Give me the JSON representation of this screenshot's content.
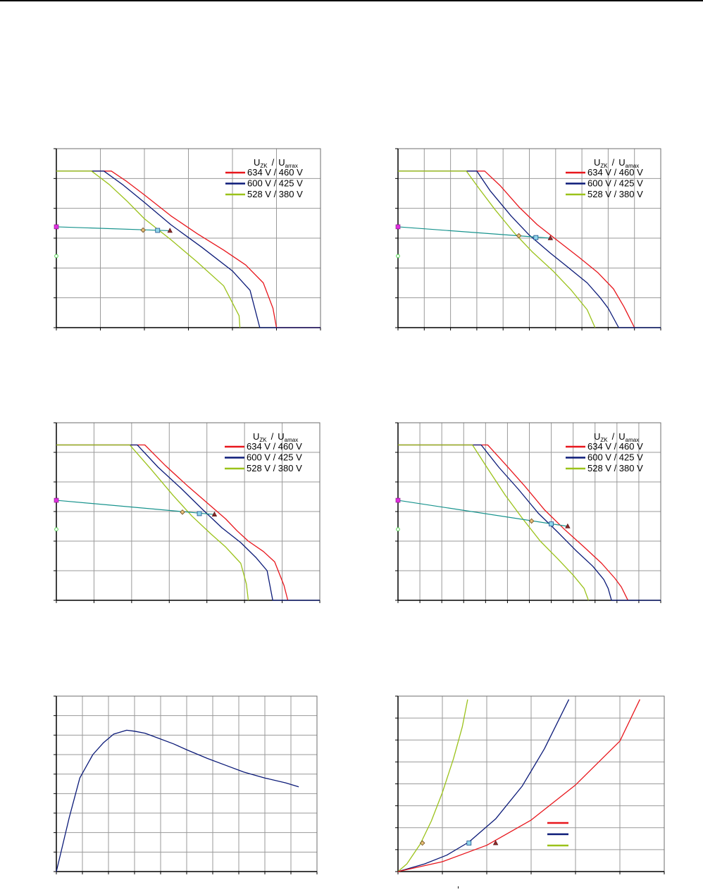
{
  "colors": {
    "red": "#e8161c",
    "navy": "#0b1a78",
    "green": "#9bc21a",
    "teal": "#17938d",
    "marker_square_fill": "#8fd6ea",
    "marker_square_edge": "#1b4d8a",
    "marker_triangle": "#8b2a2a",
    "marker_diamond_fill": "#e8c07a",
    "marker_diamond_edge": "#6b4a1a",
    "axis_point_magenta": "#e030e0",
    "axis_point_green": "#4fd14f"
  },
  "legend": {
    "head_u1": "U",
    "head_sub1": "ZK",
    "head_sep": "/",
    "head_u2": "U",
    "head_sub2": "amax",
    "head_sub2_alt": "arrax",
    "entries": [
      "634 V / 460 V",
      "600 V / 425 V",
      "528 V / 380 V"
    ]
  },
  "chart_data": [
    {
      "type": "line",
      "panel": "top-left",
      "xlim": [
        0,
        6
      ],
      "ylim": [
        0,
        6
      ],
      "grid": true,
      "legend": "top-right",
      "series": [
        {
          "name": "634 V / 460 V",
          "color": "red",
          "x": [
            0,
            1.25,
            1.6,
            2.0,
            2.6,
            3.2,
            3.8,
            4.3,
            4.7,
            4.92,
            5.0,
            6.0
          ],
          "y": [
            5.25,
            5.25,
            4.9,
            4.45,
            3.75,
            3.15,
            2.6,
            2.1,
            1.5,
            0.65,
            0,
            0
          ]
        },
        {
          "name": "600 V / 425 V",
          "color": "navy",
          "x": [
            0,
            1.08,
            1.5,
            2.0,
            2.6,
            3.3,
            4.0,
            4.4,
            4.62,
            6.0
          ],
          "y": [
            5.25,
            5.25,
            4.8,
            4.2,
            3.45,
            2.7,
            1.9,
            1.25,
            0,
            0
          ]
        },
        {
          "name": "528 V / 380 V",
          "color": "green",
          "x": [
            0,
            0.8,
            1.2,
            1.6,
            2.0,
            2.6,
            3.2,
            3.8,
            4.15,
            4.17
          ],
          "y": [
            5.25,
            5.25,
            4.8,
            4.25,
            3.65,
            2.95,
            2.2,
            1.4,
            0.4,
            0
          ]
        }
      ],
      "operating_line": {
        "x": [
          0,
          2.58
        ],
        "y": [
          3.38,
          3.25
        ]
      },
      "markers": {
        "diamond": [
          1.97,
          3.27
        ],
        "square": [
          2.3,
          3.26
        ],
        "triangle": [
          2.58,
          3.25
        ]
      },
      "axis_points": {
        "magenta": 3.38,
        "green": 2.4
      }
    },
    {
      "type": "line",
      "panel": "top-right",
      "xlim": [
        0,
        10
      ],
      "ylim": [
        0,
        6
      ],
      "grid": true,
      "legend": "top-right",
      "series": [
        {
          "name": "634 V / 460 V",
          "color": "red",
          "x": [
            0,
            3.3,
            3.9,
            4.6,
            5.3,
            6.1,
            6.9,
            7.6,
            8.2,
            8.6,
            9.0
          ],
          "y": [
            5.25,
            5.25,
            4.75,
            4.05,
            3.45,
            2.9,
            2.35,
            1.85,
            1.3,
            0.7,
            0
          ]
        },
        {
          "name": "600 V / 425 V",
          "color": "navy",
          "x": [
            0,
            3.0,
            3.5,
            4.3,
            5.0,
            5.8,
            6.5,
            7.2,
            7.7,
            8.0,
            8.4,
            10.0
          ],
          "y": [
            5.25,
            5.25,
            4.6,
            3.75,
            3.1,
            2.5,
            2.0,
            1.5,
            1.0,
            0.65,
            0,
            0
          ]
        },
        {
          "name": "528 V / 380 V",
          "color": "green",
          "x": [
            0,
            2.6,
            3.1,
            3.7,
            4.4,
            5.1,
            5.9,
            6.6,
            7.2,
            7.5
          ],
          "y": [
            5.25,
            5.25,
            4.65,
            3.95,
            3.2,
            2.55,
            1.9,
            1.25,
            0.6,
            0
          ]
        }
      ],
      "operating_line": {
        "x": [
          0,
          5.8
        ],
        "y": [
          3.38,
          3.0
        ]
      },
      "markers": {
        "diamond": [
          4.6,
          3.08
        ],
        "square": [
          5.25,
          3.02
        ],
        "triangle": [
          5.8,
          3.0
        ]
      },
      "axis_points": {
        "magenta": 3.38,
        "green": 2.4
      }
    },
    {
      "type": "line",
      "panel": "middle-left",
      "xlim": [
        0,
        7
      ],
      "ylim": [
        0,
        6
      ],
      "grid": true,
      "legend": "top-right",
      "series": [
        {
          "name": "634 V / 460 V",
          "color": "red",
          "x": [
            0,
            2.35,
            2.9,
            3.5,
            4.0,
            4.5,
            4.8,
            5.1,
            5.5,
            5.8,
            6.05,
            6.15
          ],
          "y": [
            5.25,
            5.25,
            4.55,
            3.85,
            3.3,
            2.75,
            2.35,
            2.0,
            1.65,
            1.3,
            0.5,
            0
          ]
        },
        {
          "name": "600 V / 425 V",
          "color": "navy",
          "x": [
            0,
            2.15,
            2.7,
            3.3,
            3.9,
            4.4,
            4.9,
            5.3,
            5.6,
            5.75,
            7.0
          ],
          "y": [
            5.25,
            5.25,
            4.5,
            3.8,
            3.05,
            2.45,
            1.95,
            1.45,
            1.0,
            0,
            0
          ]
        },
        {
          "name": "528 V / 380 V",
          "color": "green",
          "x": [
            0,
            1.95,
            2.5,
            3.1,
            3.6,
            4.1,
            4.5,
            4.9,
            5.05,
            5.1
          ],
          "y": [
            5.25,
            5.25,
            4.45,
            3.55,
            2.85,
            2.25,
            1.8,
            1.25,
            0.55,
            0
          ]
        }
      ],
      "operating_line": {
        "x": [
          0,
          4.2
        ],
        "y": [
          3.38,
          2.9
        ]
      },
      "markers": {
        "diamond": [
          3.35,
          2.98
        ],
        "square": [
          3.8,
          2.93
        ],
        "triangle": [
          4.2,
          2.9
        ]
      },
      "axis_points": {
        "magenta": 3.38,
        "green": 2.4
      }
    },
    {
      "type": "line",
      "panel": "middle-right",
      "xlim": [
        0,
        12
      ],
      "ylim": [
        0,
        6
      ],
      "grid": true,
      "legend": "top-right",
      "series": [
        {
          "name": "634 V / 460 V",
          "color": "red",
          "x": [
            0,
            4.1,
            4.9,
            5.8,
            6.7,
            7.6,
            8.5,
            9.3,
            9.9,
            10.2,
            10.5
          ],
          "y": [
            5.25,
            5.25,
            4.6,
            3.85,
            3.05,
            2.4,
            1.8,
            1.25,
            0.75,
            0.45,
            0
          ]
        },
        {
          "name": "600 V / 425 V",
          "color": "navy",
          "x": [
            0,
            3.8,
            4.6,
            5.5,
            6.4,
            7.3,
            8.1,
            8.9,
            9.4,
            9.6,
            9.75,
            12.0
          ],
          "y": [
            5.25,
            5.25,
            4.5,
            3.75,
            2.95,
            2.3,
            1.7,
            1.15,
            0.7,
            0.4,
            0,
            0
          ]
        },
        {
          "name": "528 V / 380 V",
          "color": "green",
          "x": [
            0,
            3.4,
            4.1,
            4.9,
            5.7,
            6.5,
            7.3,
            8.0,
            8.5,
            8.7
          ],
          "y": [
            5.25,
            5.25,
            4.45,
            3.55,
            2.75,
            2.0,
            1.4,
            0.85,
            0.4,
            0
          ]
        }
      ],
      "operating_line": {
        "x": [
          0,
          7.75
        ],
        "y": [
          3.38,
          2.5
        ]
      },
      "markers": {
        "diamond": [
          6.1,
          2.68
        ],
        "square": [
          7.0,
          2.58
        ],
        "triangle": [
          7.75,
          2.5
        ]
      },
      "axis_points": {
        "magenta": 3.38,
        "green": 2.4
      }
    },
    {
      "type": "line",
      "panel": "bottom-left",
      "xlim": [
        0,
        10
      ],
      "ylim": [
        0,
        9
      ],
      "grid": true,
      "series": [
        {
          "color": "navy",
          "x": [
            0,
            0.5,
            0.9,
            1.4,
            1.8,
            2.2,
            2.7,
            3.0,
            3.4,
            3.8,
            4.5,
            5.0,
            5.8,
            6.5,
            7.2,
            8.0,
            8.8,
            9.3
          ],
          "y": [
            0,
            2.8,
            4.8,
            6.0,
            6.6,
            7.05,
            7.25,
            7.2,
            7.1,
            6.9,
            6.55,
            6.25,
            5.8,
            5.45,
            5.1,
            4.8,
            4.55,
            4.35
          ]
        }
      ]
    },
    {
      "type": "line",
      "panel": "bottom-right",
      "xlim": [
        0,
        6
      ],
      "ylim": [
        0,
        8
      ],
      "grid": true,
      "series": [
        {
          "color": "green",
          "x": [
            0,
            0.2,
            0.5,
            0.75,
            1.0,
            1.25,
            1.45,
            1.57
          ],
          "y": [
            0,
            0.35,
            1.25,
            2.3,
            3.6,
            5.15,
            6.6,
            7.85
          ]
        },
        {
          "color": "navy",
          "x": [
            0,
            0.6,
            1.1,
            1.6,
            2.2,
            2.8,
            3.3,
            3.85
          ],
          "y": [
            0,
            0.35,
            0.75,
            1.35,
            2.4,
            3.9,
            5.6,
            7.85
          ]
        },
        {
          "color": "red",
          "x": [
            0,
            1.0,
            2.0,
            3.0,
            4.0,
            5.0,
            5.45
          ],
          "y": [
            0,
            0.45,
            1.2,
            2.35,
            3.95,
            5.95,
            7.85
          ]
        }
      ],
      "markers": {
        "diamond": [
          0.55,
          1.3
        ],
        "square": [
          1.6,
          1.3
        ],
        "triangle": [
          2.2,
          1.3
        ]
      },
      "legend_swatches": [
        "red",
        "navy",
        "green"
      ]
    }
  ]
}
